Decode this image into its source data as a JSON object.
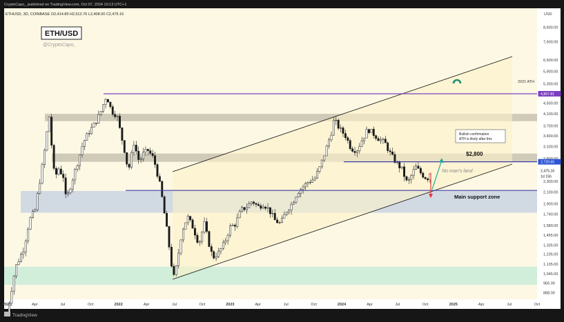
{
  "header": {
    "publisher": "CryptoCapo_ published on TradingView.com, Oct 07, 2024 10:13 UTC+1",
    "symbol_line": "ETHUSD, 3D, COINBASE  O2,414.89  H2,512.76  L2,408.00  C2,475.16"
  },
  "title_box": {
    "title": "ETH/USD",
    "handle": "@CryptoCapo_"
  },
  "footer": {
    "brand": "TradingView"
  },
  "colors": {
    "background": "#fdf8e4",
    "resistance_band": "#c8c3b0",
    "support_zone": "#c9d3e3",
    "green_zone": "#c9ecd8",
    "channel_fill": "#fbf1c8",
    "ath_line": "#7a3fc0",
    "level_line": "#3a3aa8",
    "green_arrow": "#26a69a",
    "red_arrow": "#e53935",
    "marker": "#1b8e78"
  },
  "chart_data": {
    "type": "candlestick",
    "currency_label": "USD",
    "ylim": [
      860,
      9200
    ],
    "y_scale": "log",
    "x_ticks": [
      "2021",
      "Apr",
      "Jul",
      "Oct",
      "2022",
      "Apr",
      "Jul",
      "Oct",
      "2023",
      "Apr",
      "Jul",
      "Oct",
      "2024",
      "Apr",
      "Jul",
      "Oct",
      "2025",
      "Apr",
      "Jul",
      "Oct"
    ],
    "y_ticks": [
      "8,600.00",
      "7,600.00",
      "6,500.00",
      "5,900.00",
      "5,300.00",
      "4,500.00",
      "4,100.00",
      "3,700.00",
      "3,400.00",
      "3,100.00",
      "2,800.00",
      "2,500.00",
      "2,300.00",
      "2,100.00",
      "1,900.00",
      "1,740.00",
      "1,580.00",
      "1,455.00",
      "1,335.00",
      "1,235.00",
      "1,135.00",
      "1,045.00",
      "965.00",
      "888.00"
    ],
    "price_labels": [
      {
        "value": 4867.81,
        "text": "4,867.81",
        "kind": "ath"
      },
      {
        "value": 2720.65,
        "text": "2,720.65",
        "kind": "level"
      },
      {
        "value": 2475.16,
        "text": "2,475.16",
        "kind": "last"
      },
      {
        "value": 2475.16,
        "text": "1d 15h",
        "kind": "countdown"
      }
    ],
    "price_path": [
      [
        0,
        735
      ],
      [
        3,
        1100
      ],
      [
        6,
        1300
      ],
      [
        8,
        1650
      ],
      [
        10,
        1800
      ],
      [
        11,
        2100
      ],
      [
        13,
        2800
      ],
      [
        14,
        3400
      ],
      [
        15,
        4000
      ],
      [
        16,
        3000
      ],
      [
        17,
        2300
      ],
      [
        18,
        2600
      ],
      [
        20,
        2400
      ],
      [
        21,
        1950
      ],
      [
        23,
        2300
      ],
      [
        25,
        2700
      ],
      [
        27,
        3200
      ],
      [
        29,
        3500
      ],
      [
        31,
        3750
      ],
      [
        33,
        4100
      ],
      [
        35,
        4700
      ],
      [
        36,
        4600
      ],
      [
        37,
        4200
      ],
      [
        39,
        4050
      ],
      [
        40,
        3600
      ],
      [
        42,
        2900
      ],
      [
        43,
        2500
      ],
      [
        45,
        3200
      ],
      [
        47,
        2700
      ],
      [
        48,
        2900
      ],
      [
        50,
        3000
      ],
      [
        52,
        2800
      ],
      [
        54,
        2300
      ],
      [
        55,
        2000
      ],
      [
        57,
        1450
      ],
      [
        58,
        1200
      ],
      [
        59,
        1000
      ],
      [
        60,
        1100
      ],
      [
        62,
        1500
      ],
      [
        64,
        1700
      ],
      [
        66,
        1550
      ],
      [
        68,
        1350
      ],
      [
        70,
        1600
      ],
      [
        72,
        1300
      ],
      [
        73,
        1200
      ],
      [
        75,
        1250
      ],
      [
        77,
        1350
      ],
      [
        79,
        1550
      ],
      [
        81,
        1600
      ],
      [
        83,
        1800
      ],
      [
        85,
        1850
      ],
      [
        87,
        1950
      ],
      [
        89,
        1850
      ],
      [
        91,
        1900
      ],
      [
        93,
        1800
      ],
      [
        95,
        1650
      ],
      [
        97,
        1600
      ],
      [
        99,
        1780
      ],
      [
        101,
        1900
      ],
      [
        103,
        2100
      ],
      [
        105,
        2200
      ],
      [
        107,
        2300
      ],
      [
        109,
        2350
      ],
      [
        111,
        2600
      ],
      [
        113,
        3000
      ],
      [
        115,
        3500
      ],
      [
        116,
        3900
      ],
      [
        118,
        3600
      ],
      [
        120,
        3400
      ],
      [
        122,
        3050
      ],
      [
        124,
        3000
      ],
      [
        126,
        3300
      ],
      [
        128,
        3600
      ],
      [
        130,
        3450
      ],
      [
        132,
        3300
      ],
      [
        134,
        3200
      ],
      [
        136,
        2900
      ],
      [
        138,
        2700
      ],
      [
        140,
        2550
      ],
      [
        142,
        2250
      ],
      [
        144,
        2500
      ],
      [
        145,
        2600
      ],
      [
        147,
        2450
      ],
      [
        149,
        2350
      ],
      [
        150,
        2475
      ]
    ],
    "annotations": {
      "ath_label": "2021 ATH",
      "level_text": "$2,800",
      "no_mans_land": "No man's land",
      "support_text": "Main support zone",
      "bullish_note_line1": "Bullish confirmation",
      "bullish_note_line2": "ATH is likely after this"
    },
    "zones": [
      {
        "name": "resistance",
        "low": 3850,
        "high": 4100
      },
      {
        "name": "level-2800",
        "low": 2720,
        "high": 2920
      },
      {
        "name": "support",
        "low": 1760,
        "high": 2120
      },
      {
        "name": "green-base",
        "low": 950,
        "high": 1110
      }
    ],
    "levels": [
      {
        "name": "ath",
        "value": 4867.81
      },
      {
        "name": "resistance-2720",
        "value": 2720.65
      },
      {
        "name": "support-2130",
        "value": 2130
      }
    ]
  }
}
